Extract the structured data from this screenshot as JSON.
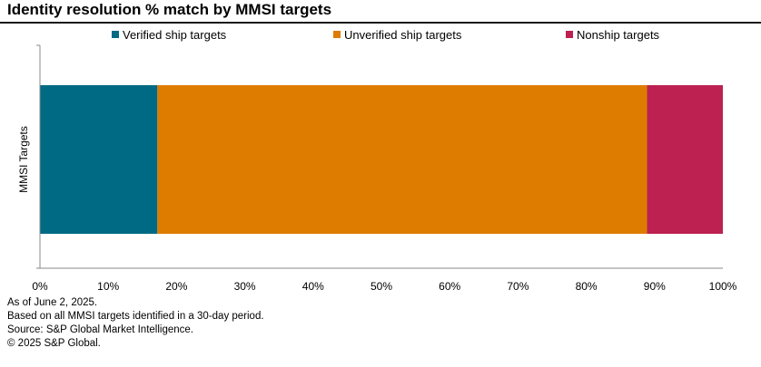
{
  "title": "Identity resolution % match by MMSI targets",
  "footer": {
    "note_date": "As of June 2, 2025.",
    "note_basis": "Based on all MMSI targets identified in a 30-day period.",
    "source": "Source: S&P Global Market Intelligence.",
    "copyright": "© 2025 S&P Global."
  },
  "colors": {
    "verified": "#006a84",
    "unverified": "#de7c00",
    "nonship": "#bc2151",
    "axis": "#888888"
  },
  "chart_data": {
    "type": "bar",
    "orientation": "horizontal",
    "stacked": true,
    "normalized": true,
    "title": "Identity resolution % match by MMSI targets",
    "categories": [
      "MMSI Targets"
    ],
    "ylabel": "MMSI Targets",
    "xlabel": "",
    "xlim": [
      0,
      100
    ],
    "x_ticks": [
      "0%",
      "10%",
      "20%",
      "30%",
      "40%",
      "50%",
      "60%",
      "70%",
      "80%",
      "90%",
      "100%"
    ],
    "grid": false,
    "legend_position": "top",
    "series": [
      {
        "name": "Verified ship targets",
        "values": [
          17.2
        ],
        "color": "#006a84"
      },
      {
        "name": "Unverified ship targets",
        "values": [
          71.7
        ],
        "color": "#de7c00"
      },
      {
        "name": "Nonship targets",
        "values": [
          11.1
        ],
        "color": "#bc2151"
      }
    ]
  }
}
